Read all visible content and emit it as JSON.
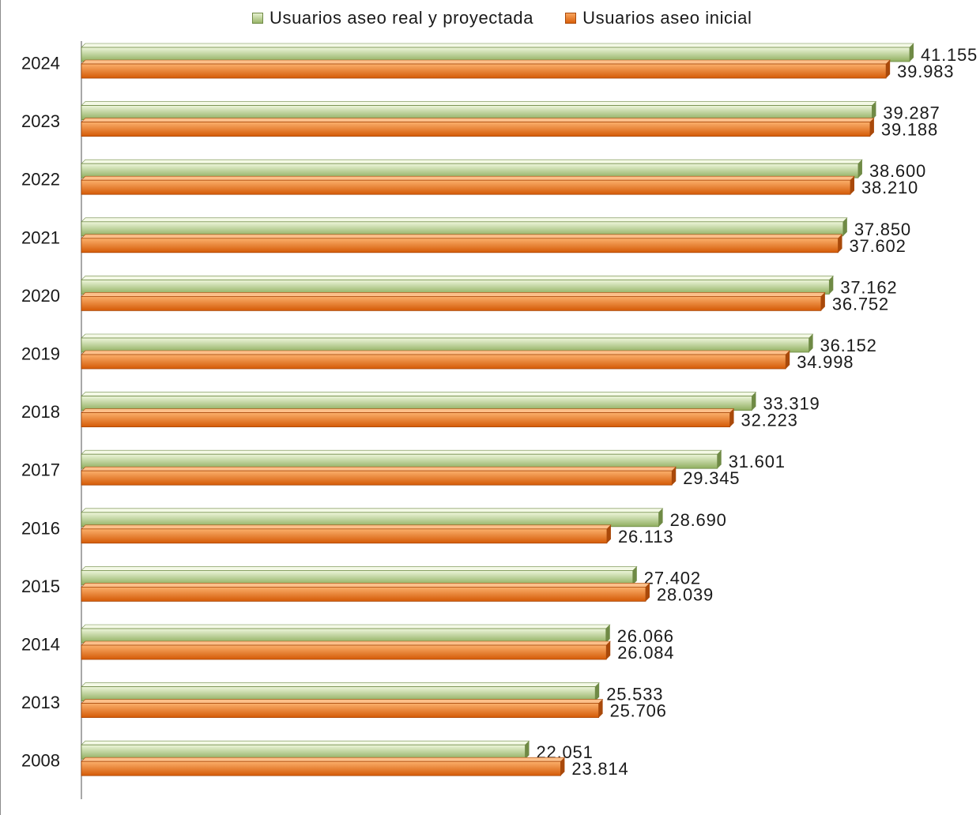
{
  "legend": {
    "series1": "Usuarios aseo real y proyectada",
    "series2": "Usuarios aseo inicial"
  },
  "colors": {
    "series1_light": "#eef6db",
    "series1_dark": "#8fae5e",
    "series2_light": "#fbb06c",
    "series2_dark": "#d45a06"
  },
  "chart_data": {
    "type": "bar",
    "orientation": "horizontal",
    "categories": [
      "2024",
      "2023",
      "2022",
      "2021",
      "2020",
      "2019",
      "2018",
      "2017",
      "2016",
      "2015",
      "2014",
      "2013",
      "2008"
    ],
    "series": [
      {
        "name": "Usuarios aseo real y proyectada",
        "values": [
          41155,
          39287,
          38600,
          37850,
          37162,
          36152,
          33319,
          31601,
          28690,
          27402,
          26066,
          25533,
          22051
        ],
        "labels": [
          "41.155",
          "39.287",
          "38.600",
          "37.850",
          "37.162",
          "36.152",
          "33.319",
          "31.601",
          "28.690",
          "27.402",
          "26.066",
          "25.533",
          "22.051"
        ]
      },
      {
        "name": "Usuarios aseo inicial",
        "values": [
          39983,
          39188,
          38210,
          37602,
          36752,
          34998,
          32223,
          29345,
          26113,
          28039,
          26084,
          25706,
          23814
        ],
        "labels": [
          "39.983",
          "39.188",
          "38.210",
          "37.602",
          "36.752",
          "34.998",
          "32.223",
          "29.345",
          "26.113",
          "28.039",
          "26.084",
          "25.706",
          "23.814"
        ]
      }
    ],
    "xlim": [
      0,
      41155
    ],
    "grid": false,
    "legend_position": "top"
  }
}
